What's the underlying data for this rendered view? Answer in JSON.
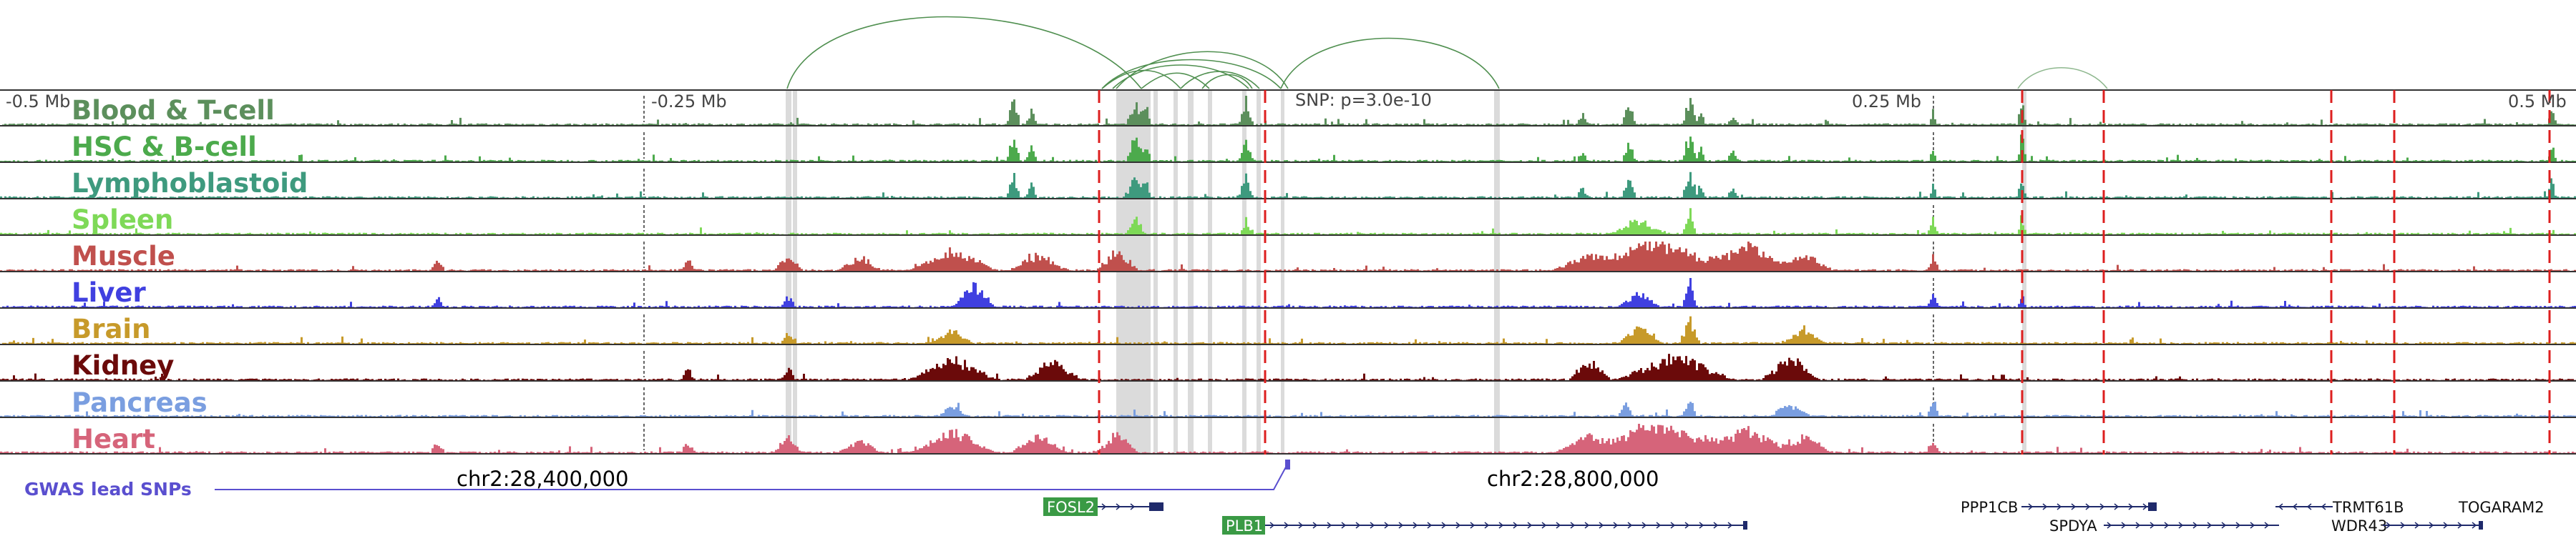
{
  "axis_labels": [
    "-0.5 Mb",
    "-0.25 Mb",
    "0.25 Mb",
    "0.5 Mb"
  ],
  "snp_label": "SNP: p=3.0e-10",
  "coordinates": [
    "chr2:28,400,000",
    "chr2:28,800,000"
  ],
  "gwas_label": "GWAS lead SNPs",
  "tracks": [
    {
      "name": "Blood & T-cell",
      "color": "#5c8f5c"
    },
    {
      "name": "HSC & B-cell",
      "color": "#4caa4c"
    },
    {
      "name": "Lymphoblastoid",
      "color": "#3e9a7e"
    },
    {
      "name": "Spleen",
      "color": "#7ed957"
    },
    {
      "name": "Muscle",
      "color": "#c0504d"
    },
    {
      "name": "Liver",
      "color": "#4040e0"
    },
    {
      "name": "Brain",
      "color": "#c79a2a"
    },
    {
      "name": "Kidney",
      "color": "#6b0a0a"
    },
    {
      "name": "Pancreas",
      "color": "#7a9ee0"
    },
    {
      "name": "Heart",
      "color": "#d6647a"
    }
  ],
  "genes": [
    {
      "name": "FOSL2",
      "highlight": true
    },
    {
      "name": "PLB1",
      "highlight": true
    },
    {
      "name": "PPP1CB",
      "highlight": false
    },
    {
      "name": "SPDYA",
      "highlight": false
    },
    {
      "name": "TRMT61B",
      "highlight": false
    },
    {
      "name": "WDR43",
      "highlight": false
    },
    {
      "name": "TOGARAM2",
      "highlight": false
    }
  ],
  "colors": {
    "gwas": "#5a4fcf",
    "dashed": "#dd1f1f",
    "gene": "#1f2a6b",
    "highlight_box": "#3a9a45"
  }
}
